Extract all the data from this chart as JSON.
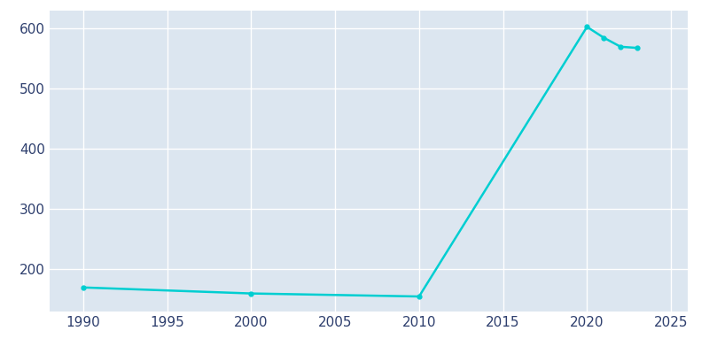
{
  "years": [
    1990,
    2000,
    2010,
    2020,
    2021,
    2022,
    2023
  ],
  "population": [
    170,
    160,
    155,
    603,
    585,
    570,
    568
  ],
  "line_color": "#00CED1",
  "marker_color": "#00CED1",
  "background_color": "#ffffff",
  "plot_bg_color": "#dce6f0",
  "grid_color": "#ffffff",
  "xlabel": "",
  "ylabel": "",
  "xlim": [
    1988,
    2026
  ],
  "ylim": [
    130,
    630
  ],
  "xticks": [
    1990,
    1995,
    2000,
    2005,
    2010,
    2015,
    2020,
    2025
  ],
  "yticks": [
    200,
    300,
    400,
    500,
    600
  ],
  "tick_color": "#2e3f6e",
  "tick_fontsize": 11,
  "line_width": 1.8,
  "marker_size": 3.5
}
